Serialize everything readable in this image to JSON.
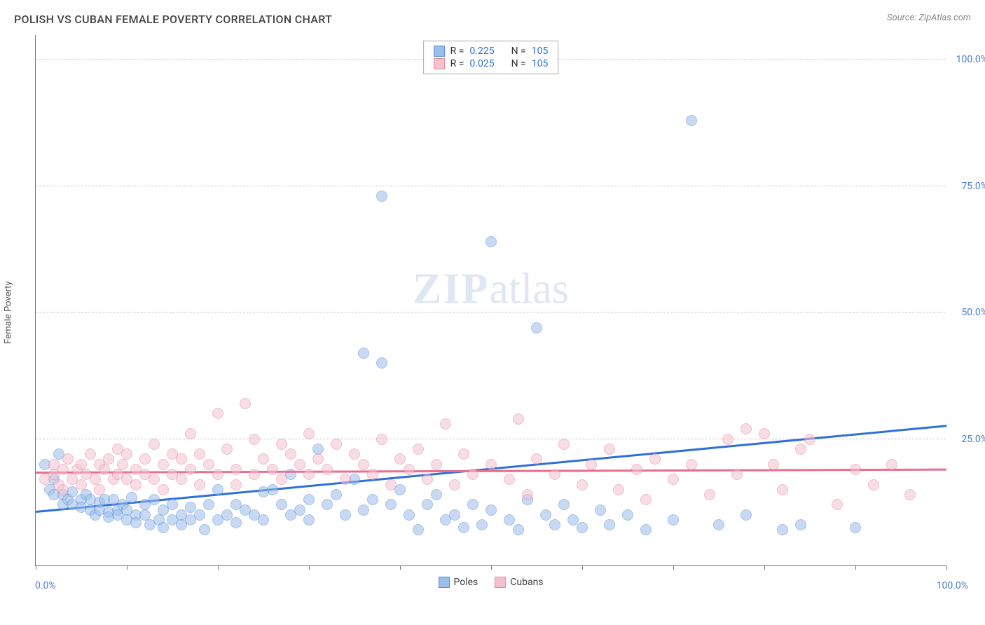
{
  "title": "POLISH VS CUBAN FEMALE POVERTY CORRELATION CHART",
  "source": "Source: ZipAtlas.com",
  "ylabel": "Female Poverty",
  "watermark_zip": "ZIP",
  "watermark_atlas": "atlas",
  "chart": {
    "type": "scatter",
    "xlim": [
      0,
      100
    ],
    "ylim": [
      0,
      105
    ],
    "xtick_step": 10,
    "ytick_labels": [
      "25.0%",
      "50.0%",
      "75.0%",
      "100.0%"
    ],
    "ytick_values": [
      25,
      50,
      75,
      100
    ],
    "xlabel_min": "0.0%",
    "xlabel_max": "100.0%",
    "background_color": "#ffffff",
    "grid_color": "#cccccc",
    "axis_color": "#777777",
    "marker_radius": 8,
    "marker_opacity": 0.55,
    "series": [
      {
        "name": "Poles",
        "fill": "#9cbdeb",
        "stroke": "#5b8fd6",
        "trend_color": "#2f6fd8",
        "trend": {
          "x1": 0,
          "y1": 10.5,
          "x2": 100,
          "y2": 27.5
        },
        "r": "0.225",
        "n": "105",
        "points": [
          [
            1,
            20
          ],
          [
            1.5,
            15
          ],
          [
            2,
            14
          ],
          [
            2,
            17
          ],
          [
            2.5,
            22
          ],
          [
            3,
            12
          ],
          [
            3,
            14
          ],
          [
            3.5,
            13
          ],
          [
            4,
            14.5
          ],
          [
            4,
            12
          ],
          [
            5,
            13
          ],
          [
            5,
            11.5
          ],
          [
            5.5,
            14
          ],
          [
            6,
            11
          ],
          [
            6,
            13
          ],
          [
            6.5,
            10
          ],
          [
            7,
            12.5
          ],
          [
            7,
            11
          ],
          [
            7.5,
            13
          ],
          [
            8,
            10.5
          ],
          [
            8,
            9.5
          ],
          [
            8.5,
            13
          ],
          [
            9,
            11
          ],
          [
            9,
            10
          ],
          [
            9.5,
            12
          ],
          [
            10,
            11
          ],
          [
            10,
            9
          ],
          [
            10.5,
            13.5
          ],
          [
            11,
            10
          ],
          [
            11,
            8.5
          ],
          [
            12,
            12
          ],
          [
            12,
            10
          ],
          [
            12.5,
            8
          ],
          [
            13,
            13
          ],
          [
            13.5,
            9
          ],
          [
            14,
            11
          ],
          [
            14,
            7.5
          ],
          [
            15,
            12
          ],
          [
            15,
            9
          ],
          [
            16,
            10
          ],
          [
            16,
            8
          ],
          [
            17,
            11.5
          ],
          [
            17,
            9
          ],
          [
            18,
            10
          ],
          [
            18.5,
            7
          ],
          [
            19,
            12
          ],
          [
            20,
            9
          ],
          [
            20,
            15
          ],
          [
            21,
            10
          ],
          [
            22,
            12
          ],
          [
            22,
            8.5
          ],
          [
            23,
            11
          ],
          [
            24,
            10
          ],
          [
            25,
            14.5
          ],
          [
            25,
            9
          ],
          [
            26,
            15
          ],
          [
            27,
            12
          ],
          [
            28,
            10
          ],
          [
            28,
            18
          ],
          [
            29,
            11
          ],
          [
            30,
            13
          ],
          [
            30,
            9
          ],
          [
            31,
            23
          ],
          [
            32,
            12
          ],
          [
            33,
            14
          ],
          [
            34,
            10
          ],
          [
            35,
            17
          ],
          [
            36,
            42
          ],
          [
            36,
            11
          ],
          [
            37,
            13
          ],
          [
            38,
            73
          ],
          [
            38,
            40
          ],
          [
            39,
            12
          ],
          [
            40,
            15
          ],
          [
            41,
            10
          ],
          [
            42,
            7
          ],
          [
            43,
            12
          ],
          [
            44,
            14
          ],
          [
            45,
            9
          ],
          [
            46,
            10
          ],
          [
            47,
            7.5
          ],
          [
            48,
            12
          ],
          [
            49,
            8
          ],
          [
            50,
            64
          ],
          [
            50,
            11
          ],
          [
            52,
            9
          ],
          [
            53,
            7
          ],
          [
            54,
            13
          ],
          [
            55,
            47
          ],
          [
            56,
            10
          ],
          [
            57,
            8
          ],
          [
            58,
            12
          ],
          [
            59,
            9
          ],
          [
            60,
            7.5
          ],
          [
            62,
            11
          ],
          [
            63,
            8
          ],
          [
            65,
            10
          ],
          [
            67,
            7
          ],
          [
            70,
            9
          ],
          [
            72,
            88
          ],
          [
            75,
            8
          ],
          [
            78,
            10
          ],
          [
            82,
            7
          ],
          [
            84,
            8
          ],
          [
            90,
            7.5
          ]
        ]
      },
      {
        "name": "Cubans",
        "fill": "#f4c2cf",
        "stroke": "#e28aa2",
        "trend_color": "#e76f8f",
        "trend": {
          "x1": 0,
          "y1": 18.2,
          "x2": 100,
          "y2": 18.8
        },
        "r": "0.025",
        "n": "105",
        "points": [
          [
            1,
            17
          ],
          [
            2,
            18
          ],
          [
            2,
            20
          ],
          [
            2.5,
            16
          ],
          [
            3,
            19
          ],
          [
            3,
            15
          ],
          [
            3.5,
            21
          ],
          [
            4,
            17
          ],
          [
            4.5,
            19
          ],
          [
            5,
            16
          ],
          [
            5,
            20
          ],
          [
            5.5,
            18
          ],
          [
            6,
            22
          ],
          [
            6.5,
            17
          ],
          [
            7,
            20
          ],
          [
            7,
            15
          ],
          [
            7.5,
            19
          ],
          [
            8,
            21
          ],
          [
            8.5,
            17
          ],
          [
            9,
            23
          ],
          [
            9,
            18
          ],
          [
            9.5,
            20
          ],
          [
            10,
            17
          ],
          [
            10,
            22
          ],
          [
            11,
            19
          ],
          [
            11,
            16
          ],
          [
            12,
            21
          ],
          [
            12,
            18
          ],
          [
            13,
            24
          ],
          [
            13,
            17
          ],
          [
            14,
            20
          ],
          [
            14,
            15
          ],
          [
            15,
            22
          ],
          [
            15,
            18
          ],
          [
            16,
            21
          ],
          [
            16,
            17
          ],
          [
            17,
            26
          ],
          [
            17,
            19
          ],
          [
            18,
            22
          ],
          [
            18,
            16
          ],
          [
            19,
            20
          ],
          [
            20,
            30
          ],
          [
            20,
            18
          ],
          [
            21,
            23
          ],
          [
            22,
            19
          ],
          [
            22,
            16
          ],
          [
            23,
            32
          ],
          [
            24,
            25
          ],
          [
            24,
            18
          ],
          [
            25,
            21
          ],
          [
            26,
            19
          ],
          [
            27,
            24
          ],
          [
            27,
            17
          ],
          [
            28,
            22
          ],
          [
            29,
            20
          ],
          [
            30,
            26
          ],
          [
            30,
            18
          ],
          [
            31,
            21
          ],
          [
            32,
            19
          ],
          [
            33,
            24
          ],
          [
            34,
            17
          ],
          [
            35,
            22
          ],
          [
            36,
            20
          ],
          [
            37,
            18
          ],
          [
            38,
            25
          ],
          [
            39,
            16
          ],
          [
            40,
            21
          ],
          [
            41,
            19
          ],
          [
            42,
            23
          ],
          [
            43,
            17
          ],
          [
            44,
            20
          ],
          [
            45,
            28
          ],
          [
            46,
            16
          ],
          [
            47,
            22
          ],
          [
            48,
            18
          ],
          [
            50,
            20
          ],
          [
            52,
            17
          ],
          [
            53,
            29
          ],
          [
            54,
            14
          ],
          [
            55,
            21
          ],
          [
            57,
            18
          ],
          [
            58,
            24
          ],
          [
            60,
            16
          ],
          [
            61,
            20
          ],
          [
            63,
            23
          ],
          [
            64,
            15
          ],
          [
            66,
            19
          ],
          [
            67,
            13
          ],
          [
            68,
            21
          ],
          [
            70,
            17
          ],
          [
            72,
            20
          ],
          [
            74,
            14
          ],
          [
            76,
            25
          ],
          [
            77,
            18
          ],
          [
            78,
            27
          ],
          [
            80,
            26
          ],
          [
            81,
            20
          ],
          [
            82,
            15
          ],
          [
            84,
            23
          ],
          [
            85,
            25
          ],
          [
            88,
            12
          ],
          [
            90,
            19
          ],
          [
            92,
            16
          ],
          [
            94,
            20
          ],
          [
            96,
            14
          ]
        ]
      }
    ]
  },
  "legend_series": [
    {
      "label": "Poles",
      "fill": "#9cbdeb",
      "stroke": "#5b8fd6"
    },
    {
      "label": "Cubans",
      "fill": "#f4c2cf",
      "stroke": "#e28aa2"
    }
  ]
}
